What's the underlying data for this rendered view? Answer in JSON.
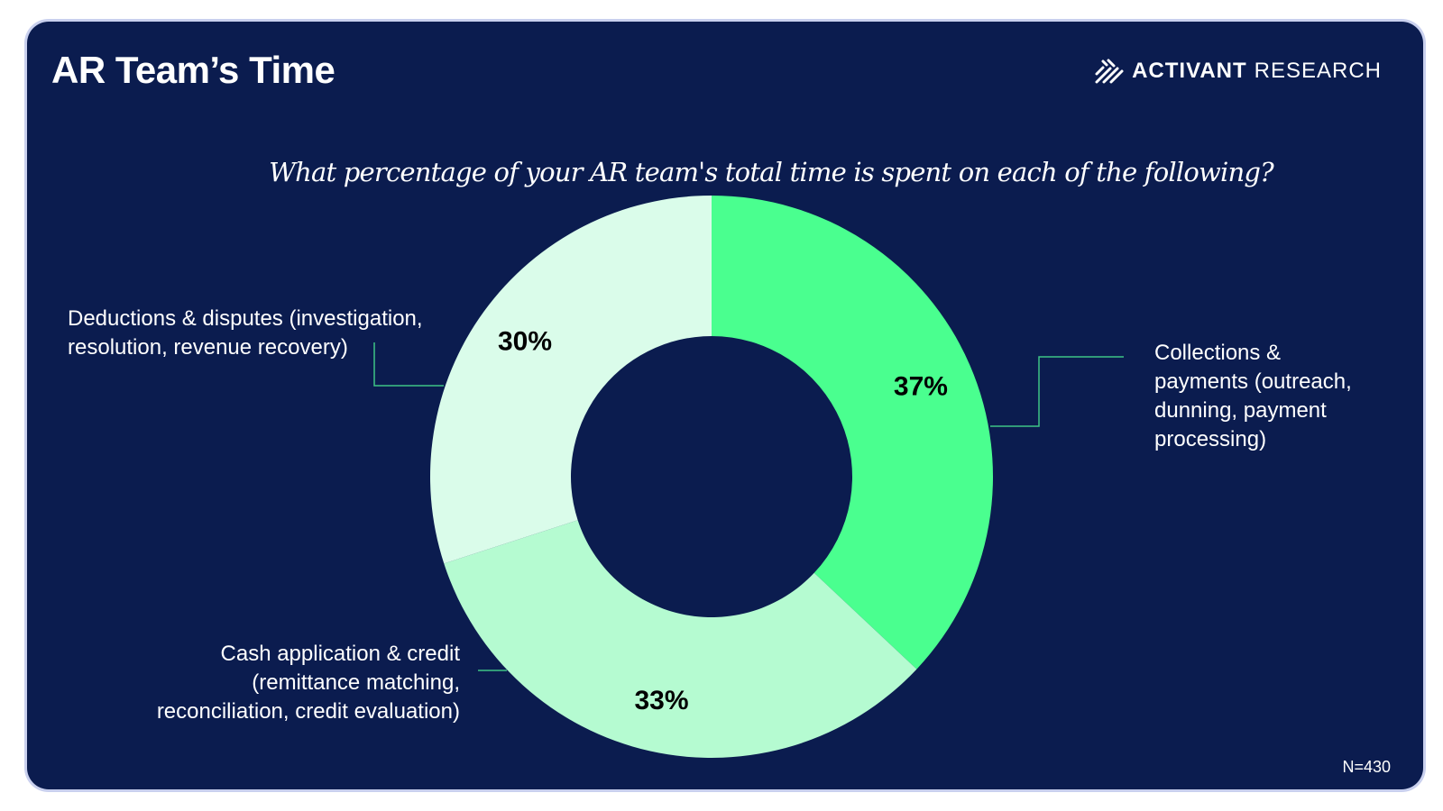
{
  "header": {
    "title": "AR Team’s Time",
    "brand_strong": "ACTIVANT",
    "brand_light": "RESEARCH"
  },
  "question": "What percentage of your AR team's total time is spent on each of the following?",
  "footnote": "N=430",
  "colors": {
    "background": "#0b1c4f",
    "collections": "#4aff8f",
    "cash": "#b5fbd1",
    "deductions": "#dafcea",
    "leader": "#3ec486"
  },
  "chart_data": {
    "type": "pie",
    "donut": true,
    "start_angle": "12 o'clock",
    "direction": "clockwise",
    "slices": [
      {
        "label": "Collections & payments (outreach, dunning, payment processing)",
        "value": 37,
        "value_label": "37%",
        "color": "#4aff8f"
      },
      {
        "label": "Cash application & credit (remittance matching, reconciliation, credit evaluation)",
        "value": 33,
        "value_label": "33%",
        "color": "#b5fbd1"
      },
      {
        "label": "Deductions & disputes (investigation, resolution, revenue recovery)",
        "value": 30,
        "value_label": "30%",
        "color": "#dafcea"
      }
    ],
    "labels": {
      "collections": "Collections &\npayments (outreach,\ndunning, payment\nprocessing)",
      "cash": "Cash application & credit\n(remittance matching,\nreconciliation, credit evaluation)",
      "deductions": "Deductions & disputes (investigation,\nresolution, revenue recovery)"
    }
  }
}
